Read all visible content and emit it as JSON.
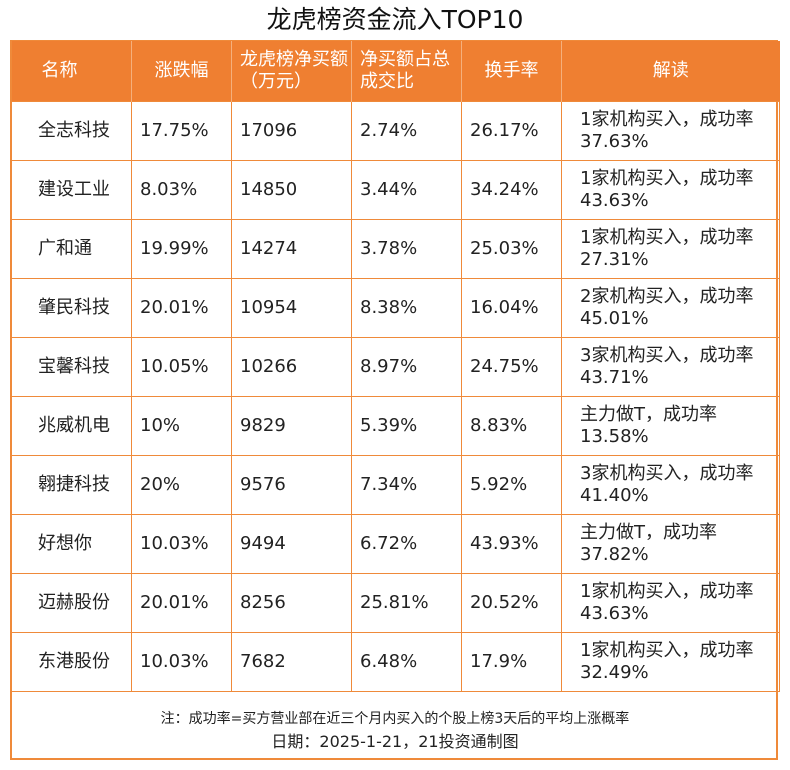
{
  "title": "龙虎榜资金流入TOP10",
  "columns": [
    "名称",
    "涨跌幅",
    "龙虎榜净买额（万元）",
    "净买额占总成交比",
    "换手率",
    "解读"
  ],
  "rows": [
    {
      "name": "全志科技",
      "change": "17.75%",
      "net_buy": "17096",
      "ratio": "2.74%",
      "turnover": "26.17%",
      "note": "1家机构买入，成功率37.63%"
    },
    {
      "name": "建设工业",
      "change": "8.03%",
      "net_buy": "14850",
      "ratio": "3.44%",
      "turnover": "34.24%",
      "note": "1家机构买入，成功率43.63%"
    },
    {
      "name": "广和通",
      "change": "19.99%",
      "net_buy": "14274",
      "ratio": "3.78%",
      "turnover": "25.03%",
      "note": "1家机构买入，成功率27.31%"
    },
    {
      "name": "肇民科技",
      "change": "20.01%",
      "net_buy": "10954",
      "ratio": "8.38%",
      "turnover": "16.04%",
      "note": "2家机构买入，成功率45.01%"
    },
    {
      "name": "宝馨科技",
      "change": "10.05%",
      "net_buy": "10266",
      "ratio": "8.97%",
      "turnover": "24.75%",
      "note": "3家机构买入，成功率43.71%"
    },
    {
      "name": "兆威机电",
      "change": "10%",
      "net_buy": "9829",
      "ratio": "5.39%",
      "turnover": "8.83%",
      "note": "主力做T，成功率13.58%"
    },
    {
      "name": "翱捷科技",
      "change": "20%",
      "net_buy": "9576",
      "ratio": "7.34%",
      "turnover": "5.92%",
      "note": "3家机构买入，成功率41.40%"
    },
    {
      "name": "好想你",
      "change": "10.03%",
      "net_buy": "9494",
      "ratio": "6.72%",
      "turnover": "43.93%",
      "note": "主力做T，成功率37.82%"
    },
    {
      "name": "迈赫股份",
      "change": "20.01%",
      "net_buy": "8256",
      "ratio": "25.81%",
      "turnover": "20.52%",
      "note": "1家机构买入，成功率43.63%"
    },
    {
      "name": "东港股份",
      "change": "10.03%",
      "net_buy": "7682",
      "ratio": "6.48%",
      "turnover": "17.9%",
      "note": "1家机构买入，成功率32.49%"
    }
  ],
  "footnote": "注：成功率=买方营业部在近三个月内买入的个股上榜3天后的平均上涨概率",
  "date_line": "日期：2025-1-21，21投资通制图",
  "colors": {
    "accent": "#ef7f31",
    "border": "#ef8a3a"
  }
}
